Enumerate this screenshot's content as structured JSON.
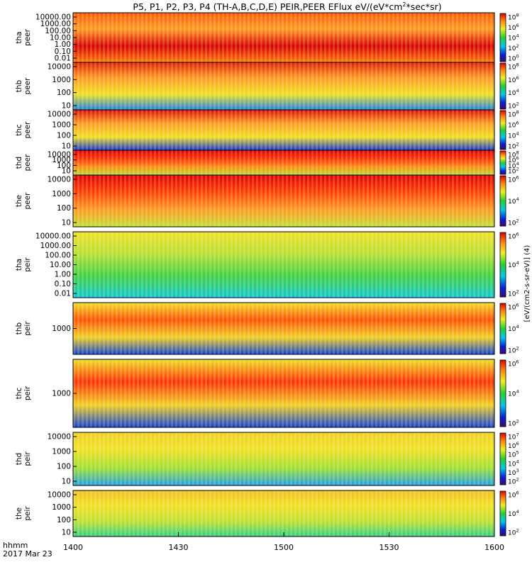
{
  "chart_data": {
    "type": "heatmap",
    "title": "P5, P1, P2, P3, P4 (TH-A,B,C,D,E) PEIR,PEER EFlux eV/(eV*cm",
    "title_sup": "2",
    "title_tail": "*sec*sr)",
    "x_axis": {
      "ticks": [
        "1400",
        "1430",
        "1500",
        "1530",
        "1600"
      ],
      "label_line1": "hhmm",
      "label_line2": "2017 Mar 23"
    },
    "colorbar_label": "[eV/(cm2-s-sr-eV)] (4)",
    "panels": [
      {
        "id": "tha_peer",
        "label_top": "tha",
        "label_bottom": "peer",
        "y_ticks": [
          "10000.00",
          "1000.00",
          "100.00",
          "10.00",
          "1.00",
          "0.10",
          "0.01"
        ],
        "cb_ticks": [
          "10^8",
          "10^6",
          "10^4",
          "10^2",
          "10^0"
        ]
      },
      {
        "id": "thb_peer",
        "label_top": "thb",
        "label_bottom": "peer",
        "y_ticks": [
          "10000",
          "1000",
          "100",
          "10"
        ],
        "cb_ticks": [
          "10^8",
          "10^6",
          "10^4",
          "10^2"
        ]
      },
      {
        "id": "thc_peer",
        "label_top": "thc",
        "label_bottom": "peer",
        "y_ticks": [
          "10000",
          "1000",
          "100",
          "10"
        ],
        "cb_ticks": [
          "10^8",
          "10^6",
          "10^4",
          "10^2"
        ]
      },
      {
        "id": "thd_peer",
        "label_top": "thd",
        "label_bottom": "peer",
        "y_ticks": [
          "10000",
          "1000",
          "100",
          "10"
        ],
        "cb_ticks": [
          "10^8",
          "10^6",
          "10^4",
          "10^2"
        ]
      },
      {
        "id": "the_peer",
        "label_top": "the",
        "label_bottom": "peer",
        "y_ticks": [
          "10000",
          "1000",
          "100",
          "10"
        ],
        "cb_ticks": [
          "10^6",
          "10^4",
          "10^2"
        ]
      },
      {
        "id": "tha_peir",
        "label_top": "tha",
        "label_bottom": "peir",
        "y_ticks": [
          "10000.00",
          "1000.00",
          "100.00",
          "10.00",
          "1.00",
          "0.10",
          "0.01"
        ],
        "cb_ticks": [
          "10^6",
          "10^4",
          "10^2"
        ]
      },
      {
        "id": "thb_peir",
        "label_top": "thb",
        "label_bottom": "peir",
        "y_ticks": [
          "1000"
        ],
        "cb_ticks": [
          "10^6",
          "10^4",
          "10^2"
        ]
      },
      {
        "id": "thc_peir",
        "label_top": "thc",
        "label_bottom": "peir",
        "y_ticks": [
          "1000"
        ],
        "cb_ticks": [
          "10^6",
          "10^4",
          "10^2"
        ]
      },
      {
        "id": "thd_peir",
        "label_top": "thd",
        "label_bottom": "peir",
        "y_ticks": [
          "10000",
          "1000",
          "100",
          "10"
        ],
        "cb_ticks": [
          "10^7",
          "10^6",
          "10^5",
          "10^4",
          "10^3",
          "10^2"
        ]
      },
      {
        "id": "the_peir",
        "label_top": "the",
        "label_bottom": "peir",
        "y_ticks": [
          "10000",
          "1000",
          "100",
          "10"
        ],
        "cb_ticks": [
          "10^6",
          "10^4",
          "10^2"
        ]
      }
    ]
  }
}
